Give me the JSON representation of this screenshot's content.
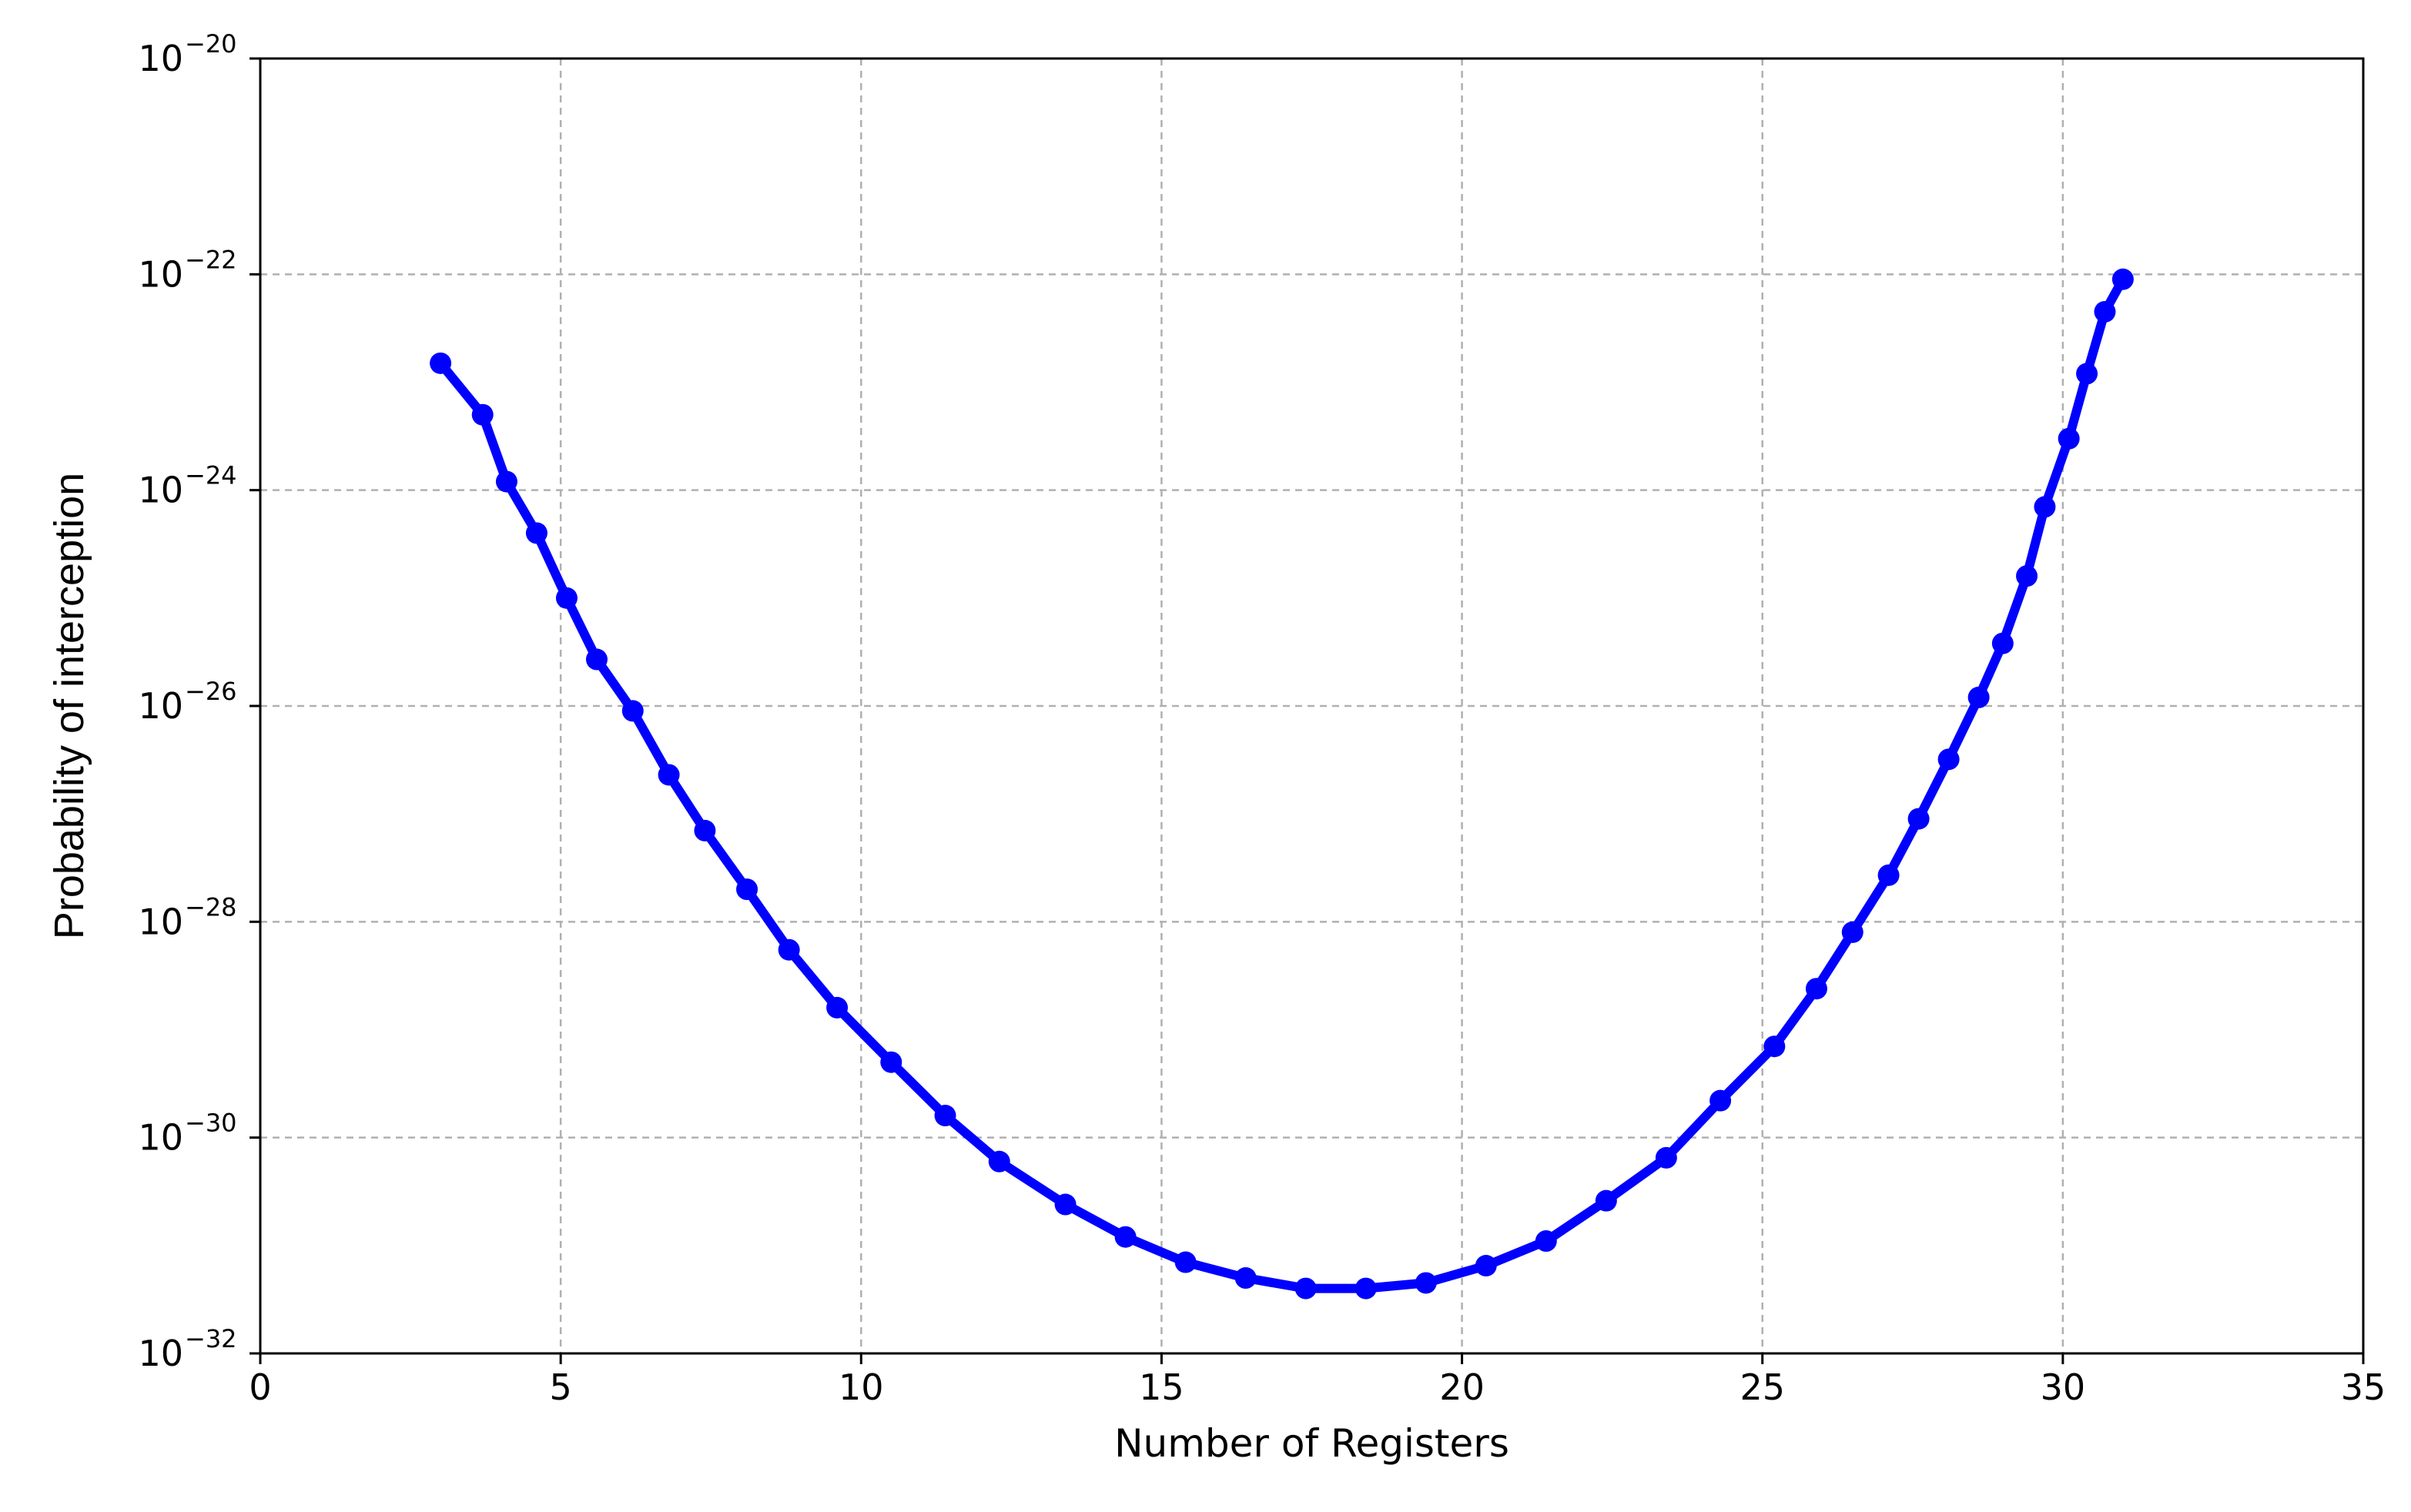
{
  "chart_data": {
    "type": "line",
    "title": "",
    "xlabel": "Number of Registers",
    "ylabel": "Probability of interception",
    "xlim": [
      0,
      35
    ],
    "ylim_exponent": [
      -32,
      -20
    ],
    "yscale": "log",
    "grid": true,
    "x_ticks": [
      "0",
      "5",
      "10",
      "15",
      "20",
      "25",
      "30",
      "35"
    ],
    "y_ticks": [
      {
        "base": "10",
        "exp": "−32"
      },
      {
        "base": "10",
        "exp": "−30"
      },
      {
        "base": "10",
        "exp": "−28"
      },
      {
        "base": "10",
        "exp": "−26"
      },
      {
        "base": "10",
        "exp": "−24"
      },
      {
        "base": "10",
        "exp": "−22"
      },
      {
        "base": "10",
        "exp": "−20"
      }
    ],
    "series": [
      {
        "color": "#0000ff",
        "marker": "circle",
        "x": [
          3.0,
          3.7,
          4.1,
          4.6,
          5.1,
          5.6,
          6.2,
          6.8,
          7.4,
          8.1,
          8.8,
          9.6,
          10.5,
          11.4,
          12.3,
          13.4,
          14.4,
          15.4,
          16.4,
          17.4,
          18.4,
          19.4,
          20.4,
          21.4,
          22.4,
          23.4,
          24.3,
          25.2,
          25.9,
          26.5,
          27.1,
          27.6,
          28.1,
          28.6,
          29.0,
          29.4,
          29.7,
          30.1,
          30.4,
          30.7,
          31.0
        ],
        "y": [
          1.5e-23,
          5e-24,
          1.2e-24,
          4e-25,
          1e-25,
          2.7e-26,
          9e-27,
          2.3e-27,
          7e-28,
          2e-28,
          5.5e-29,
          1.6e-29,
          5e-30,
          1.6e-30,
          6e-31,
          2.4e-31,
          1.2e-31,
          7e-32,
          5e-32,
          4e-32,
          4e-32,
          4.5e-32,
          6.5e-32,
          1.1e-31,
          2.6e-31,
          6.5e-31,
          2.2e-30,
          7e-30,
          2.4e-29,
          8e-29,
          2.7e-28,
          9e-28,
          3.2e-27,
          1.2e-26,
          3.8e-26,
          1.6e-25,
          7e-25,
          3e-24,
          1.2e-23,
          4.5e-23,
          9e-23
        ]
      }
    ]
  }
}
